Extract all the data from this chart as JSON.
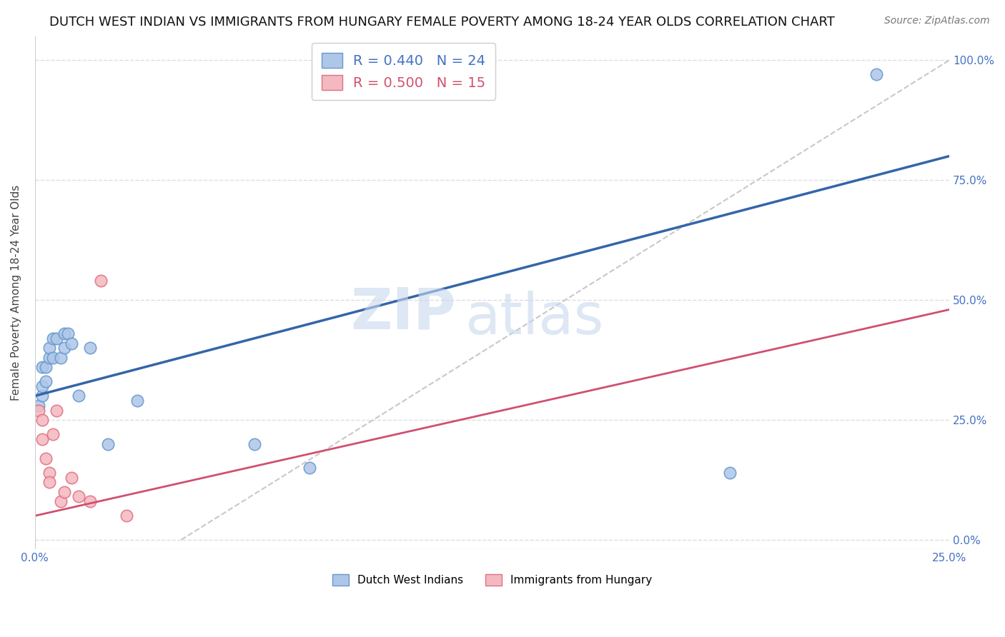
{
  "title": "DUTCH WEST INDIAN VS IMMIGRANTS FROM HUNGARY FEMALE POVERTY AMONG 18-24 YEAR OLDS CORRELATION CHART",
  "source": "Source: ZipAtlas.com",
  "ylabel": "Female Poverty Among 18-24 Year Olds",
  "xlabel": "",
  "xlim": [
    0.0,
    0.25
  ],
  "ylim": [
    -0.02,
    1.05
  ],
  "xticks": [
    0.0,
    0.05,
    0.1,
    0.15,
    0.2,
    0.25
  ],
  "yticks": [
    0.0,
    0.25,
    0.5,
    0.75,
    1.0
  ],
  "xtick_labels": [
    "0.0%",
    "",
    "",
    "",
    "",
    "25.0%"
  ],
  "ytick_labels_right": [
    "0.0%",
    "25.0%",
    "50.0%",
    "75.0%",
    "100.0%"
  ],
  "blue_R": 0.44,
  "blue_N": 24,
  "pink_R": 0.5,
  "pink_N": 15,
  "blue_label": "Dutch West Indians",
  "pink_label": "Immigrants from Hungary",
  "watermark_zip": "ZIP",
  "watermark_atlas": "atlas",
  "blue_scatter_x": [
    0.001,
    0.002,
    0.002,
    0.002,
    0.003,
    0.003,
    0.004,
    0.004,
    0.005,
    0.005,
    0.006,
    0.007,
    0.008,
    0.008,
    0.009,
    0.01,
    0.012,
    0.015,
    0.02,
    0.028,
    0.06,
    0.075,
    0.19,
    0.23
  ],
  "blue_scatter_y": [
    0.28,
    0.3,
    0.32,
    0.36,
    0.33,
    0.36,
    0.38,
    0.4,
    0.38,
    0.42,
    0.42,
    0.38,
    0.4,
    0.43,
    0.43,
    0.41,
    0.3,
    0.4,
    0.2,
    0.29,
    0.2,
    0.15,
    0.14,
    0.97
  ],
  "pink_scatter_x": [
    0.001,
    0.002,
    0.002,
    0.003,
    0.004,
    0.004,
    0.005,
    0.006,
    0.007,
    0.008,
    0.01,
    0.012,
    0.015,
    0.018,
    0.025
  ],
  "pink_scatter_y": [
    0.27,
    0.21,
    0.25,
    0.17,
    0.14,
    0.12,
    0.22,
    0.27,
    0.08,
    0.1,
    0.13,
    0.09,
    0.08,
    0.54,
    0.05
  ],
  "blue_line_x0": 0.0,
  "blue_line_x1": 0.25,
  "blue_line_y0": 0.3,
  "blue_line_y1": 0.8,
  "pink_line_x0": 0.0,
  "pink_line_x1": 0.25,
  "pink_line_y0": 0.05,
  "pink_line_y1": 0.48,
  "diag_line_x0": 0.04,
  "diag_line_x1": 0.25,
  "diag_line_y0": 0.0,
  "diag_line_y1": 1.0,
  "title_fontsize": 13,
  "source_fontsize": 10,
  "axis_tick_color": "#4472C4",
  "scatter_blue_color": "#AEC6E8",
  "scatter_blue_edge": "#6699CC",
  "scatter_pink_color": "#F4B8C1",
  "scatter_pink_edge": "#E07080",
  "line_blue_color": "#3465A8",
  "line_pink_color": "#D05070",
  "diag_color": "#C8C8C8",
  "grid_color": "#DDDDDD",
  "ylabel_color": "#444444",
  "background_color": "#FFFFFF"
}
